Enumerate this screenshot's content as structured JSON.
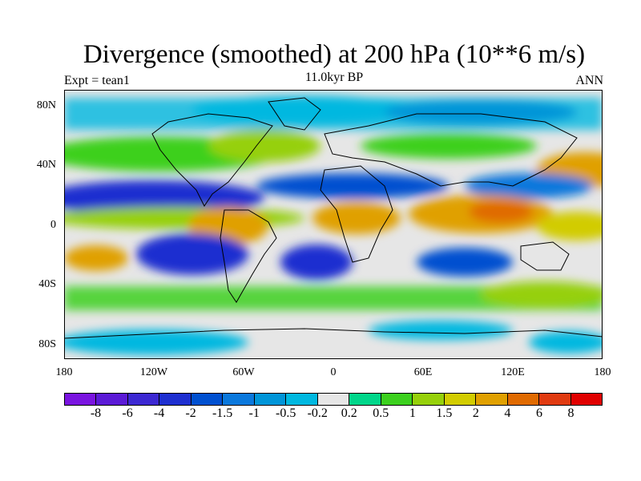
{
  "title": "Divergence (smoothed) at 200 hPa (10**6 m/s)",
  "subtitle": "11.0kyr BP",
  "left_label": "Expt = tean1",
  "right_label": "ANN",
  "x_ticks": [
    "180",
    "120W",
    "60W",
    "0",
    "60E",
    "120E",
    "180"
  ],
  "y_ticks": [
    "80N",
    "40N",
    "0",
    "40S",
    "80S"
  ],
  "colorbar": {
    "labels": [
      "-8",
      "-6",
      "-4",
      "-2",
      "-1.5",
      "-1",
      "-0.5",
      "-0.2",
      "0.2",
      "0.5",
      "1",
      "1.5",
      "2",
      "4",
      "6",
      "8"
    ],
    "colors": [
      "#7a14e0",
      "#5b1ad6",
      "#3c28d2",
      "#1e2fd0",
      "#0050d0",
      "#0a78dc",
      "#0095d8",
      "#00b8e0",
      "#e6e6e6",
      "#00d68a",
      "#3cd01e",
      "#96d00a",
      "#d2cc00",
      "#e0a000",
      "#e06a00",
      "#e03a10",
      "#e00000"
    ]
  },
  "chart_data": {
    "type": "heatmap",
    "title": "Divergence (smoothed) at 200 hPa (10**6 m/s)",
    "subtitle": "11.0kyr BP",
    "experiment": "tean1",
    "season": "ANN",
    "x_range": [
      -180,
      180
    ],
    "y_range": [
      -90,
      90
    ],
    "contour_levels": [
      -8,
      -6,
      -4,
      -2,
      -1.5,
      -1,
      -0.5,
      -0.2,
      0.2,
      0.5,
      1,
      1.5,
      2,
      4,
      6,
      8
    ]
  }
}
